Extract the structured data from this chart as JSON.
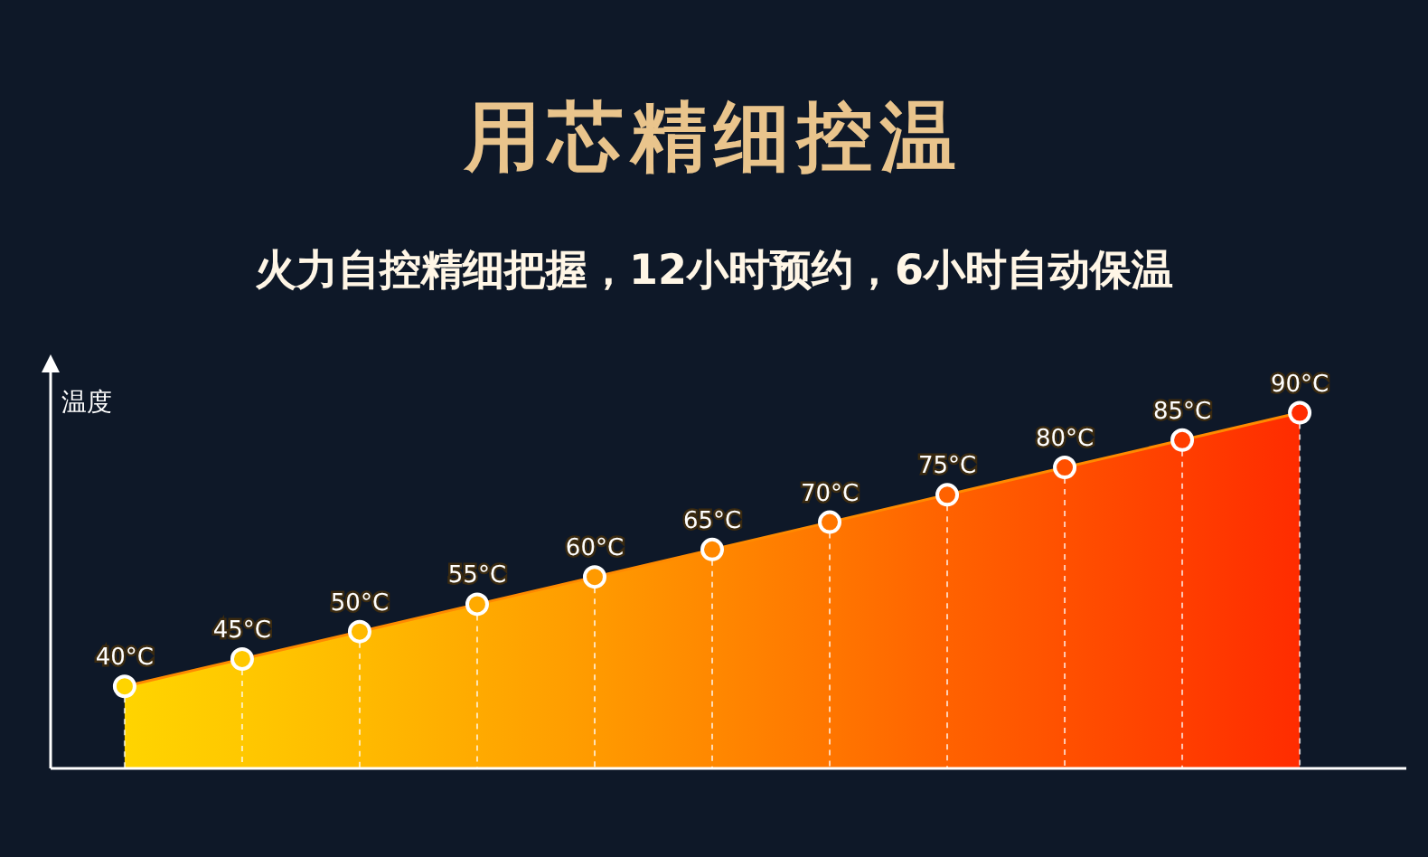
{
  "chart_data": {
    "type": "area",
    "title": "用芯精细控温",
    "subtitle": "火力自控精细把握，12小时预约，6小时自动保温",
    "ylabel": "温度",
    "categories": [
      null,
      null,
      null,
      null,
      null,
      null,
      null,
      null,
      null,
      null,
      null
    ],
    "ylim": [
      25,
      100
    ],
    "grid": "x",
    "marker": "circle",
    "series": [
      {
        "color": "#ff8a00",
        "values": [
          40,
          45,
          50,
          55,
          60,
          65,
          70,
          75,
          80,
          85,
          90
        ],
        "colors": [
          "#ffd400",
          "#ffc800",
          "#ffba00",
          "#ffaa00",
          "#ff9a00",
          "#ff8800",
          "#ff7600",
          "#ff6200",
          "#ff5000",
          "#ff3e00",
          "#ff2c00"
        ],
        "value_labels": [
          "40°C",
          "45°C",
          "50°C",
          "55°C",
          "60°C",
          "65°C",
          "70°C",
          "75°C",
          "80°C",
          "85°C",
          "90°C"
        ]
      }
    ]
  }
}
